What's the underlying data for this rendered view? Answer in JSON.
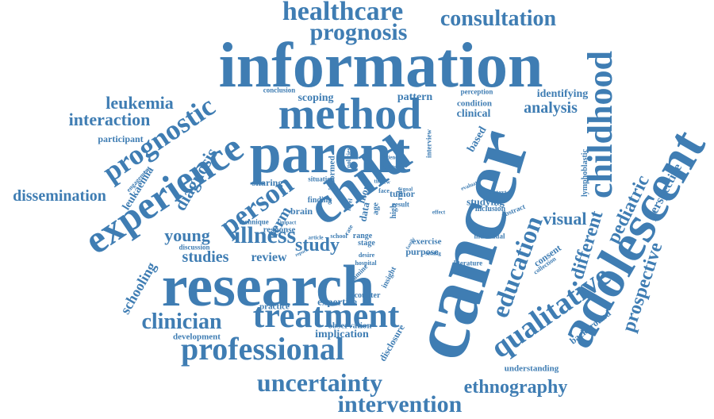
{
  "color": "#3f7db3",
  "words": [
    "healthcare",
    "consultation",
    "prognosis",
    "information",
    "childhood",
    "leukemia",
    "prognostic",
    "method",
    "interaction",
    "analysis",
    "identifying",
    "participant",
    "scoping",
    "pattern",
    "conclusion",
    "perception",
    "condition",
    "clinical",
    "parent",
    "experience",
    "cancer",
    "child",
    "adolescent",
    "dissemination",
    "leukaemia",
    "diagnosis",
    "person",
    "young",
    "illness",
    "study",
    "studies",
    "review",
    "research",
    "treatment",
    "clinician",
    "professional",
    "uncertainty",
    "intervention",
    "ethnography",
    "qualitative",
    "education",
    "prospective",
    "schooling",
    "background",
    "visual",
    "different",
    "pediatric",
    "perspective",
    "lymphoblastic",
    "understanding",
    "practice",
    "expertise",
    "development",
    "implication",
    "observation",
    "encounter",
    "disclosure",
    "exercise",
    "purpose",
    "tumor",
    "insight",
    "sharing",
    "engagement",
    "term",
    "response",
    "discussion",
    "technique",
    "brain",
    "finding",
    "range",
    "stage",
    "desire",
    "hospital",
    "literature",
    "consent",
    "collection",
    "individual",
    "inclusion",
    "studying",
    "abstract",
    "context",
    "evaluate",
    "based",
    "interview",
    "science",
    "policies",
    "informed",
    "more",
    "data",
    "age",
    "high",
    "role",
    "result",
    "situation",
    "view",
    "future",
    "time",
    "effect",
    "setting",
    "school",
    "article",
    "report",
    "family",
    "examine",
    "impact",
    "rate",
    "face",
    "level",
    "goal"
  ]
}
